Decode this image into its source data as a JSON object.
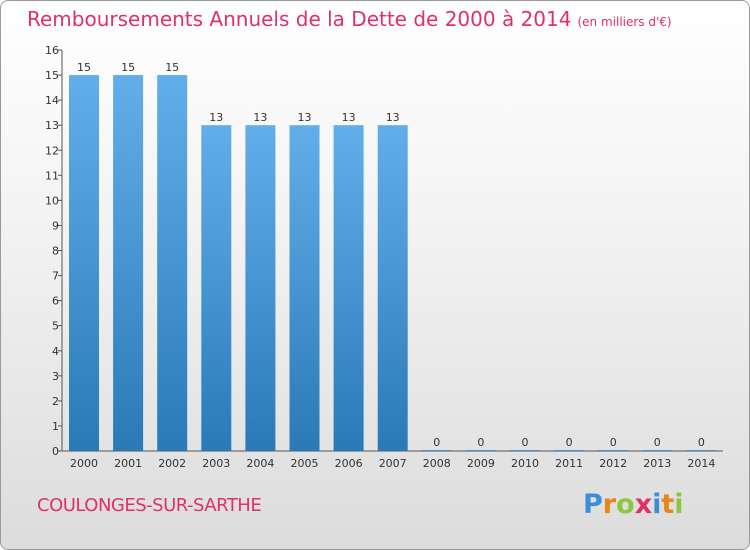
{
  "header": {
    "title": "Remboursements Annuels de la Dette de 2000 à 2014",
    "subtitle": "(en milliers d'€)"
  },
  "commune": {
    "name": "COULONGES-SUR-SARTHE"
  },
  "logo": {
    "letters": [
      "P",
      "r",
      "o",
      "x",
      "i",
      "t",
      "i"
    ],
    "colors": [
      "#3a8fd8",
      "#e8841a",
      "#8dc63f",
      "#e0306a",
      "#3a8fd8",
      "#e8841a",
      "#8dc63f"
    ]
  },
  "colors": {
    "bar_top": "#62aeea",
    "bar_bottom": "#2a7ab8",
    "accent": "#e0306a"
  },
  "chart_data": {
    "type": "bar",
    "title": "Remboursements Annuels de la Dette de 2000 à 2014",
    "subtitle": "(en milliers d'€)",
    "categories": [
      "2000",
      "2001",
      "2002",
      "2003",
      "2004",
      "2005",
      "2006",
      "2007",
      "2008",
      "2009",
      "2010",
      "2011",
      "2012",
      "2013",
      "2014"
    ],
    "values": [
      15,
      15,
      15,
      13,
      13,
      13,
      13,
      13,
      0,
      0,
      0,
      0,
      0,
      0,
      0
    ],
    "data_labels": [
      "15",
      "15",
      "15",
      "13",
      "13",
      "13",
      "13",
      "13",
      "0",
      "0",
      "0",
      "0",
      "0",
      "0",
      "0"
    ],
    "yticks": [
      0,
      1,
      2,
      3,
      4,
      5,
      6,
      7,
      8,
      9,
      10,
      11,
      12,
      13,
      14,
      15,
      16
    ],
    "ylim": [
      0,
      16
    ],
    "xlabel": "",
    "ylabel": "",
    "grid": false,
    "legend": "none"
  }
}
